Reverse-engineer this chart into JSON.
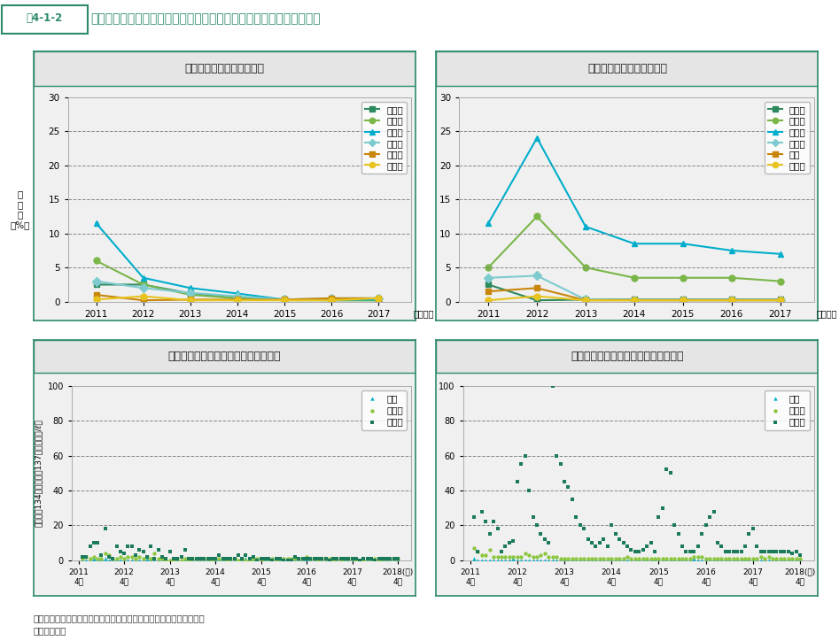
{
  "title_num": "図4-1-2",
  "title_text": "福島県及びその周辺における公共用水域の放射性セシウムの検出状況",
  "panel1_title": "検出率の推移【河川水質】",
  "panel2_title": "検出率の推移【湖沼水質】",
  "panel3_title": "検出値の推移（福島県）【河川水質】",
  "panel4_title": "検出値の推移（福島県）【湖沼水質】",
  "years": [
    2011,
    2012,
    2013,
    2014,
    2015,
    2016,
    2017
  ],
  "panel1_data": {
    "宮城県": [
      2.5,
      2.5,
      1.2,
      0.5,
      0.3,
      0.2,
      0.2
    ],
    "福島県": [
      6.0,
      2.5,
      1.0,
      0.5,
      0.2,
      0.2,
      0.2
    ],
    "浜通り": [
      11.5,
      3.5,
      2.0,
      1.2,
      0.3,
      0.3,
      0.3
    ],
    "中通り": [
      3.0,
      2.0,
      1.3,
      0.8,
      0.3,
      0.5,
      0.5
    ],
    "栃木県": [
      1.0,
      0.2,
      0.3,
      0.3,
      0.3,
      0.5,
      0.5
    ],
    "千葉県": [
      0.3,
      0.8,
      0.2,
      0.2,
      0.2,
      0.2,
      0.5
    ]
  },
  "panel2_data": {
    "宮城県": [
      2.5,
      0.2,
      0.3,
      0.3,
      0.3,
      0.3,
      0.3
    ],
    "福島県": [
      5.0,
      12.5,
      5.0,
      3.5,
      3.5,
      3.5,
      3.0
    ],
    "浜通り": [
      11.5,
      24.0,
      11.0,
      8.5,
      8.5,
      7.5,
      7.0
    ],
    "中通り": [
      3.5,
      3.8,
      0.3,
      0.2,
      0.2,
      0.2,
      0.2
    ],
    "会津": [
      1.5,
      2.0,
      0.2,
      0.2,
      0.2,
      0.2,
      0.2
    ],
    "群馬県": [
      0.2,
      0.8,
      0.2,
      0.2,
      0.2,
      0.2,
      0.2
    ]
  },
  "panel1_series": [
    "宮城県",
    "福島県",
    "浜通り",
    "中通り",
    "栃木県",
    "千葉県"
  ],
  "panel2_series": [
    "宮城県",
    "福島県",
    "浜通り",
    "中通り",
    "会津",
    "群馬県"
  ],
  "series_colors": {
    "宮城県": "#2d8a5e",
    "福島県": "#7ab648",
    "浜通り": "#00aecc",
    "中通り": "#7ecbcf",
    "栃木県": "#c8860a",
    "千葉県": "#e8c41e",
    "会津": "#c8860a",
    "群馬県": "#e8c41e"
  },
  "series_markers": {
    "宮城県": "s",
    "福島県": "o",
    "浜通り": "^",
    "中通り": "D",
    "栃木県": "s",
    "千葉県": "o",
    "会津": "s",
    "群馬県": "o"
  },
  "scatter_colors": {
    "浜通り": "#1a7a5a",
    "中通り": "#8dc63f",
    "会津": "#00b0c8"
  },
  "scatter_markers": {
    "浜通り": "s",
    "中通り": "o",
    "会津": "^"
  },
  "teal": "#2d8a6e",
  "panel_bg": "#f0f0f0",
  "title_bg": "#e5e5e5",
  "note": "注：公共用水域（沿岸）では、放射性セシウムは検出されていない。",
  "source": "資料：環境省"
}
